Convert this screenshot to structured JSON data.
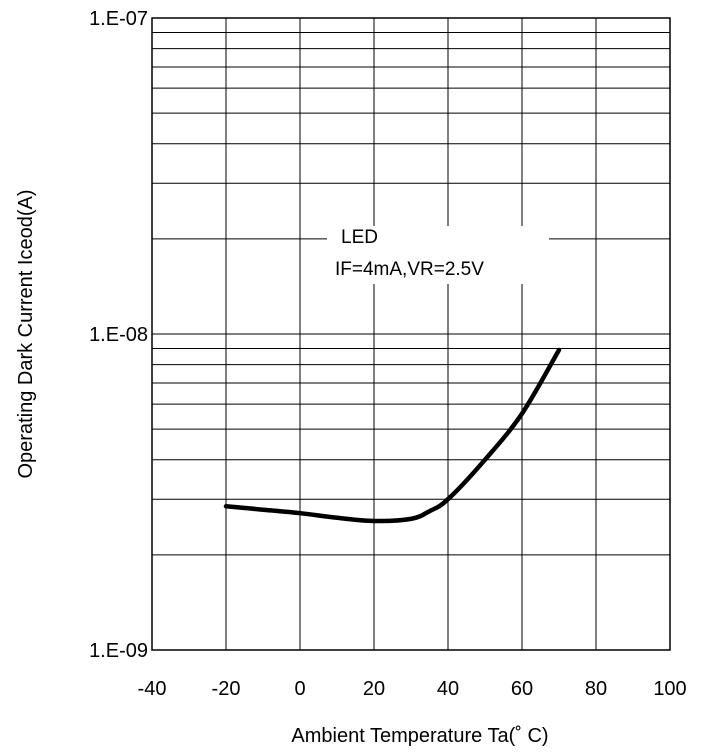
{
  "chart_data": {
    "type": "line",
    "title": "",
    "xlabel": "Ambient Temperature Ta(˚ C)",
    "ylabel": "Operating Dark Current Iceod(A)",
    "xlim": [
      -40,
      100
    ],
    "ylim": [
      1e-09,
      1e-07
    ],
    "yscale": "log",
    "grid": true,
    "x_ticks": [
      -40,
      -20,
      0,
      20,
      40,
      60,
      80,
      100
    ],
    "x_tick_labels": [
      "-40",
      "-20",
      "0",
      "20",
      "40",
      "60",
      "80",
      "100"
    ],
    "y_ticks": [
      1e-09,
      1e-08,
      1e-07
    ],
    "y_tick_labels": [
      "1.E-09",
      "1.E-08",
      "1.E-07"
    ],
    "annotation": {
      "lines": [
        "LED",
        "IF=4mA,VR=2.5V"
      ]
    },
    "series": [
      {
        "name": "",
        "x": [
          -20,
          -10,
          0,
          10,
          20,
          30,
          35,
          40,
          50,
          60,
          70
        ],
        "y": [
          2.85e-09,
          2.78e-09,
          2.71e-09,
          2.62e-09,
          2.56e-09,
          2.6e-09,
          2.75e-09,
          3e-09,
          4e-09,
          5.6e-09,
          8.9e-09
        ]
      }
    ]
  }
}
